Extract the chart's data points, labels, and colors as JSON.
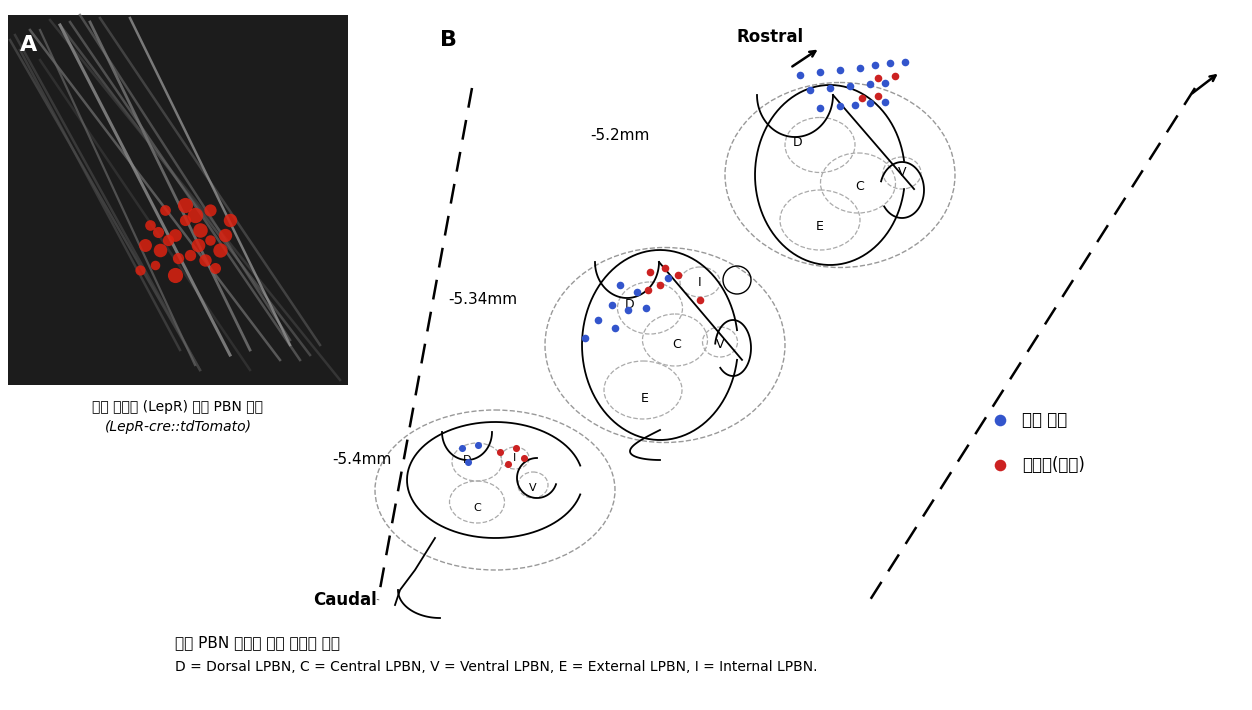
{
  "fig_width": 12.52,
  "fig_height": 7.1,
  "background_color": "#ffffff",
  "panel_A_label": "A",
  "panel_B_label": "B",
  "image_caption_line1": "렉틴 수용체 (LepR) 발현 PBN 뉴런",
  "image_caption_line2": "(LepR-cre::tdTomato)",
  "legend_blue_label": "효과 없음",
  "legend_red_label": "과분극(억제)",
  "caption_line1": "외측 PBN 뉴런에 대한 렉틴의 효과",
  "caption_line2": "D = Dorsal LPBN, C = Central LPBN, V = Ventral LPBN, E = External LPBN, I = Internal LPBN.",
  "rostral_label": "Rostral",
  "caudal_label": "Caudal",
  "slice_labels": [
    "-5.2mm",
    "-5.34mm",
    "-5.4mm"
  ],
  "blue_color": "#3355cc",
  "red_color": "#cc2222"
}
